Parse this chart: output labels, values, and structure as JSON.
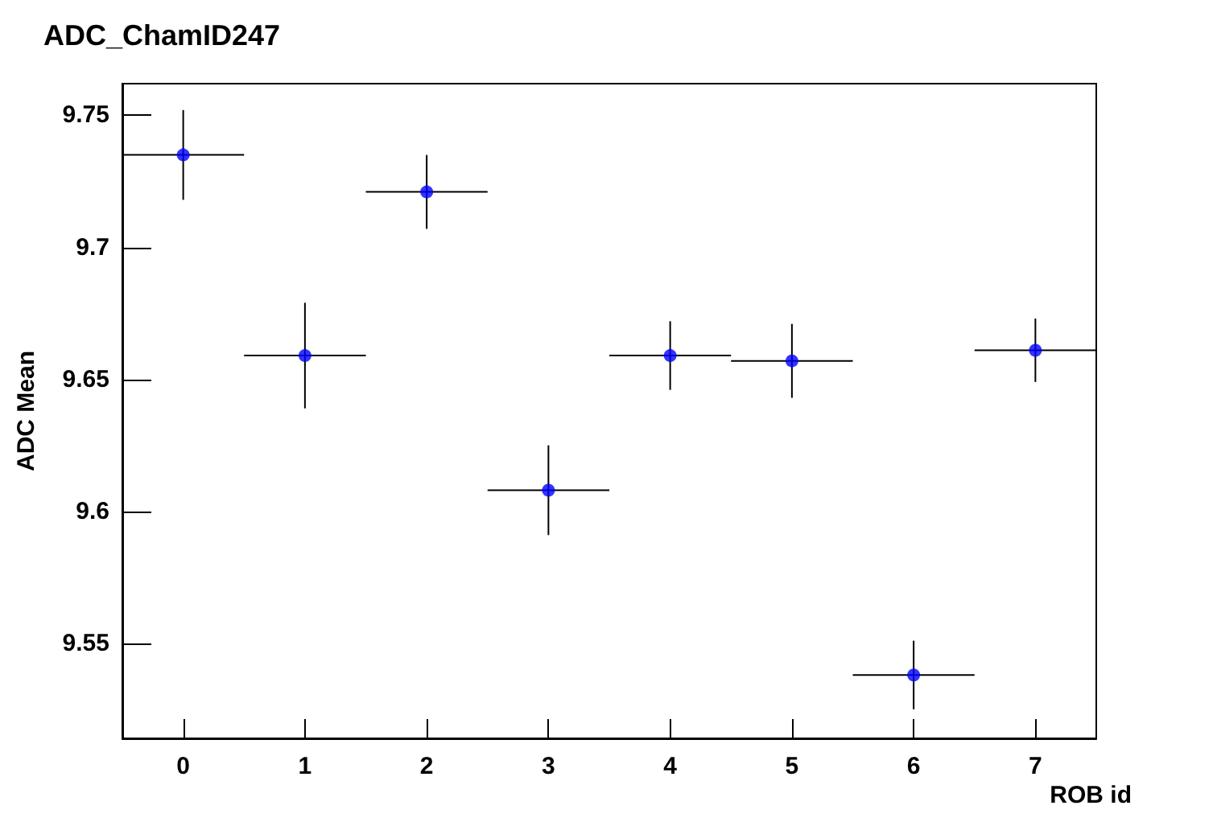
{
  "chart_data": {
    "type": "scatter",
    "title": "ADC_ChamID247",
    "xlabel": "ROB id",
    "ylabel": "ADC Mean",
    "x": [
      0,
      1,
      2,
      3,
      4,
      5,
      6,
      7
    ],
    "series": [
      {
        "color": "#0000ff",
        "values": [
          9.735,
          9.659,
          9.721,
          9.608,
          9.659,
          9.657,
          9.538,
          9.661
        ],
        "errors": [
          0.017,
          0.02,
          0.014,
          0.017,
          0.013,
          0.014,
          0.013,
          0.012
        ],
        "xerrors": [
          0.5,
          0.5,
          0.5,
          0.5,
          0.5,
          0.5,
          0.5,
          0.5
        ]
      }
    ],
    "xlim": [
      -0.5,
      7.5
    ],
    "xticks": [
      0,
      1,
      2,
      3,
      4,
      5,
      6,
      7
    ],
    "ylim": [
      9.514,
      9.762
    ],
    "yticks": [
      9.55,
      9.6,
      9.65,
      9.7,
      9.75
    ],
    "grid": false,
    "marker": "circle"
  }
}
